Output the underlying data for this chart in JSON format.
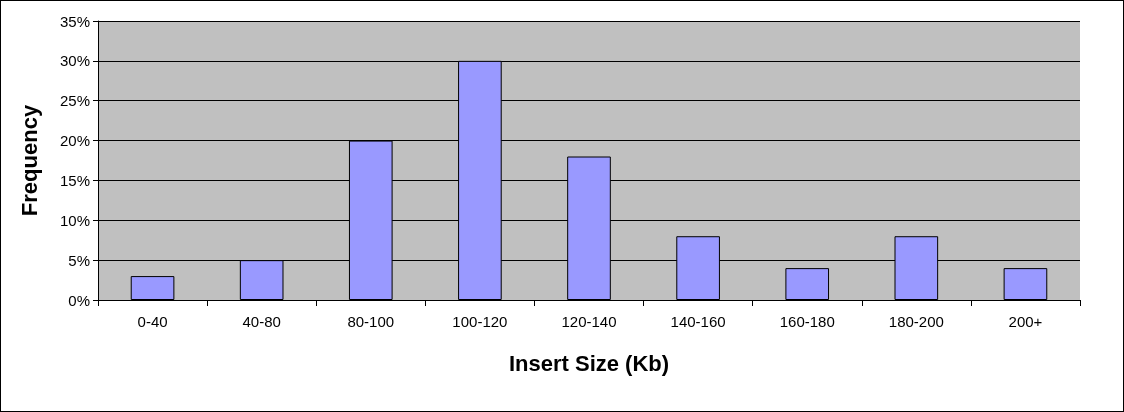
{
  "chart_data": {
    "type": "bar",
    "xlabel": "Insert Size (Kb)",
    "ylabel": "Frequency",
    "categories": [
      "0-40",
      "40-80",
      "80-100",
      "100-120",
      "120-140",
      "140-160",
      "160-180",
      "180-200",
      "200+"
    ],
    "values": [
      3,
      5,
      20,
      30,
      18,
      8,
      4,
      8,
      4
    ],
    "color": "#9999ff",
    "ylim": [
      0,
      35
    ],
    "yticks": [
      {
        "value": 0,
        "label": "0%"
      },
      {
        "value": 5,
        "label": "5%"
      },
      {
        "value": 10,
        "label": "10%"
      },
      {
        "value": 15,
        "label": "15%"
      },
      {
        "value": 20,
        "label": "20%"
      },
      {
        "value": 25,
        "label": "25%"
      },
      {
        "value": 30,
        "label": "30%"
      },
      {
        "value": 35,
        "label": "35%"
      }
    ],
    "grid": "y"
  }
}
